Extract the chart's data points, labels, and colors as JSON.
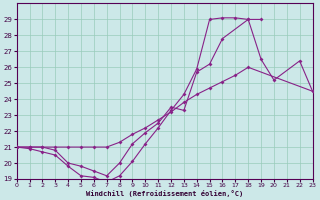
{
  "bg_color": "#cce8e8",
  "line_color": "#882288",
  "grid_color": "#99ccbb",
  "xlabel": "Windchill (Refroidissement éolien,°C)",
  "xlim": [
    0,
    23
  ],
  "ylim": [
    19,
    30
  ],
  "yticks": [
    19,
    20,
    21,
    22,
    23,
    24,
    25,
    26,
    27,
    28,
    29
  ],
  "xticks": [
    0,
    1,
    2,
    3,
    4,
    5,
    6,
    7,
    8,
    9,
    10,
    11,
    12,
    13,
    14,
    15,
    16,
    17,
    18,
    19,
    20,
    21,
    22,
    23
  ],
  "line1_x": [
    0,
    1,
    2,
    3,
    4,
    5,
    6,
    7,
    8,
    9,
    10,
    11,
    12,
    13,
    14,
    15,
    16,
    17,
    18,
    19
  ],
  "line1_y": [
    21,
    20.9,
    20.7,
    20.5,
    19.8,
    19.2,
    19.1,
    18.8,
    19.2,
    20.1,
    21.2,
    22.2,
    23.3,
    24.3,
    25.9,
    29.0,
    29.1,
    29.1,
    29.0,
    29.0
  ],
  "line2_x": [
    0,
    1,
    2,
    3,
    4,
    5,
    6,
    7,
    8,
    9,
    10,
    11,
    12,
    13,
    14,
    15,
    16,
    18,
    19,
    20,
    22,
    23
  ],
  "line2_y": [
    21,
    21,
    21,
    20.8,
    20.0,
    19.8,
    19.5,
    19.2,
    20.0,
    21.2,
    21.9,
    22.5,
    23.5,
    23.3,
    25.7,
    26.2,
    27.8,
    29.0,
    26.5,
    25.2,
    26.4,
    24.5
  ],
  "line3_x": [
    0,
    1,
    2,
    3,
    4,
    5,
    6,
    7,
    8,
    9,
    10,
    11,
    12,
    13,
    14,
    15,
    16,
    17,
    18,
    23
  ],
  "line3_y": [
    21,
    21,
    21,
    21,
    21,
    21,
    21,
    21,
    21.3,
    21.8,
    22.2,
    22.7,
    23.2,
    23.8,
    24.3,
    24.7,
    25.1,
    25.5,
    26.0,
    24.5
  ]
}
